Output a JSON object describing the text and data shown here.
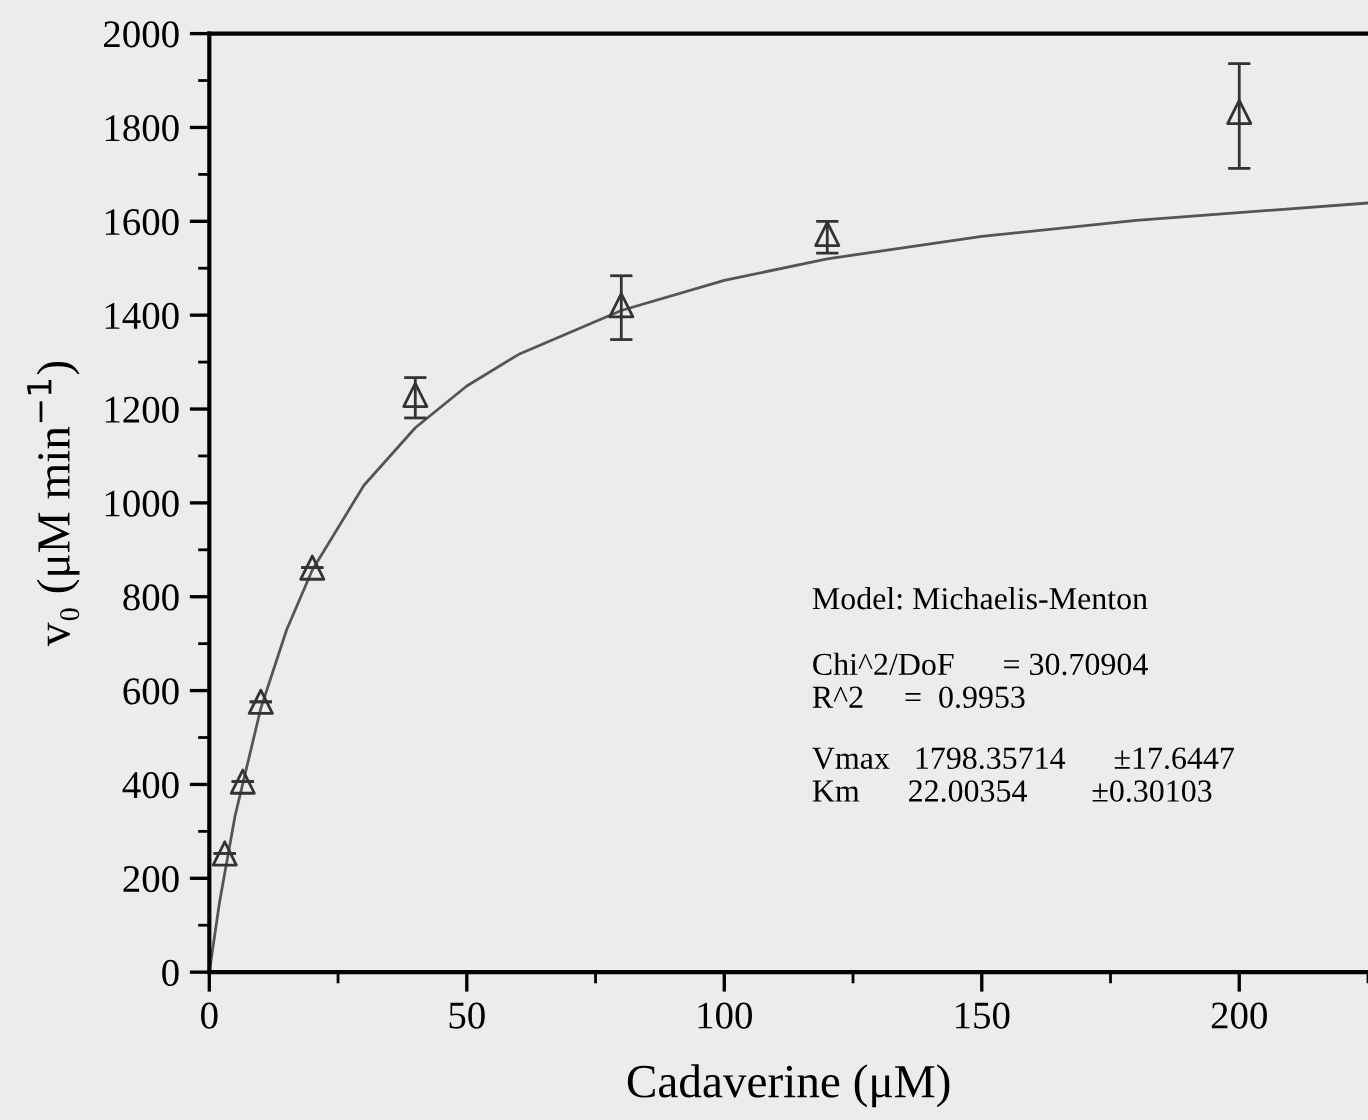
{
  "chart_data": {
    "type": "scatter",
    "xlabel": "Cadaverine (μM)",
    "ylabel": "v₀ (μM min$^{−1}$)",
    "xlim": [
      0,
      225
    ],
    "ylim": [
      0,
      2000
    ],
    "xticks": [
      0,
      {
        "value": 25,
        "label": null
      },
      50,
      {
        "value": 75,
        "label": null
      },
      100,
      {
        "value": 125,
        "label": null
      },
      150,
      {
        "value": 175,
        "label": null
      },
      200,
      {
        "value": 225,
        "label": null
      }
    ],
    "yticks": [
      0,
      {
        "value": 100,
        "label": null
      },
      200,
      {
        "value": 300,
        "label": null
      },
      400,
      {
        "value": 500,
        "label": null
      },
      600,
      {
        "value": 700,
        "label": null
      },
      800,
      {
        "value": 900,
        "label": null
      },
      1000,
      {
        "value": 1100,
        "label": null
      },
      1200,
      {
        "value": 1300,
        "label": null
      },
      1400,
      {
        "value": 1500,
        "label": null
      },
      1600,
      {
        "value": 1700,
        "label": null
      },
      1800,
      {
        "value": 1900,
        "label": null
      },
      2000
    ],
    "grid": false,
    "legend": false,
    "series": [
      {
        "color": "#333333",
        "marker": "triangle",
        "x": [
          3,
          6.5,
          10,
          20,
          40,
          80,
          120,
          200
        ],
        "values": [
          253,
          406,
          576,
          862,
          1230,
          1421,
          1573,
          1833
        ],
        "errors": [
          null,
          null,
          null,
          null,
          [
            1181,
            1267
          ],
          [
            1348,
            1484
          ],
          [
            1532,
            1600
          ],
          [
            1713,
            1936
          ]
        ]
      },
      {
        "type": "line",
        "color": "#555555",
        "marker": "none",
        "line_style": "solid",
        "x": [
          0,
          2,
          5,
          10,
          15,
          20,
          30,
          40,
          50,
          60,
          80,
          100,
          120,
          150,
          180,
          225
        ],
        "values": [
          0,
          150,
          333,
          562,
          729,
          857,
          1037,
          1160,
          1249,
          1316,
          1410,
          1474,
          1520,
          1568,
          1602,
          1639
        ]
      }
    ],
    "annotations": [
      "Model: Michaelis-Menton",
      "Chi^2/DoF      = 30.70904",
      "R^2     =  0.9953",
      "Vmax   1798.35714      ±17.6447",
      "Km      22.00354        ±0.30103"
    ]
  }
}
